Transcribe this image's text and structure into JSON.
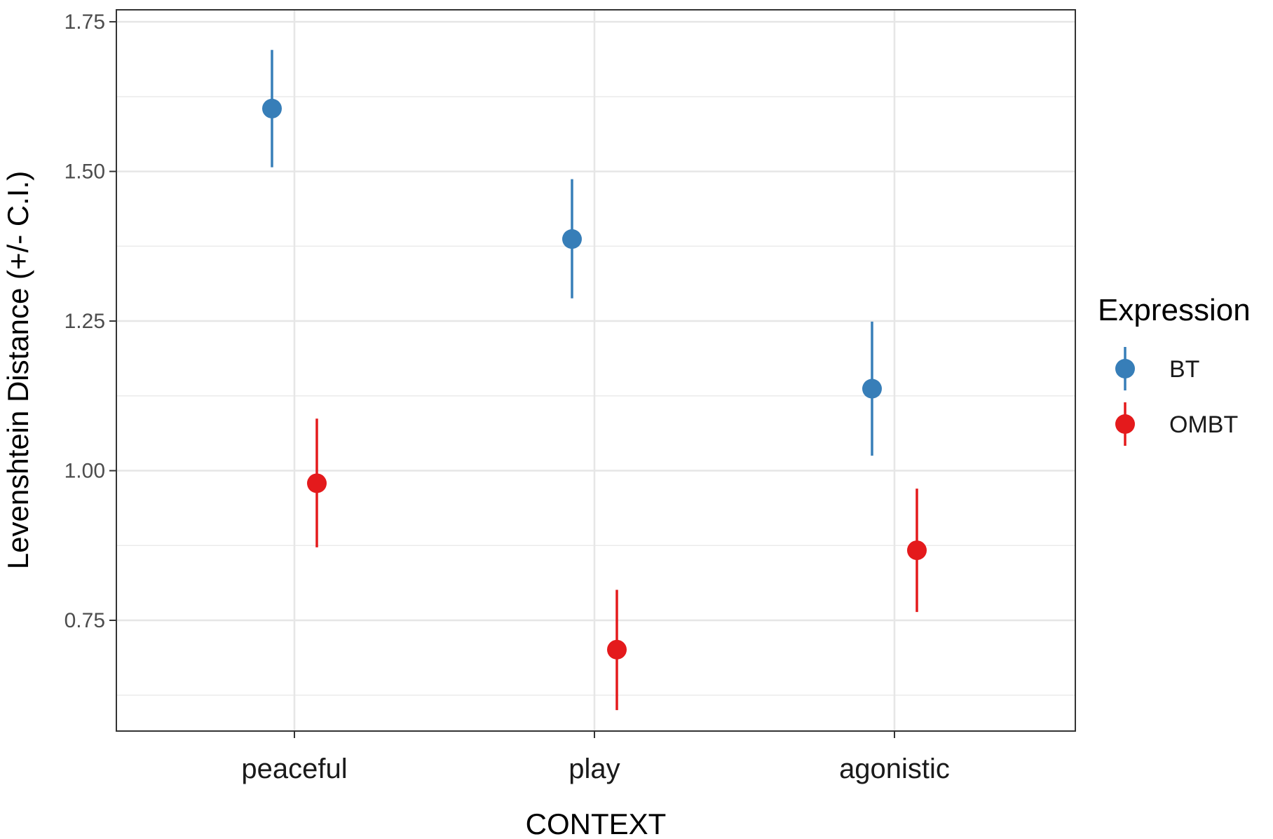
{
  "chart_data": {
    "type": "scatter",
    "title": "",
    "xlabel": "CONTEXT",
    "ylabel": "Levenshtein Distance (+/- C.I.)",
    "categories": [
      "peaceful",
      "play",
      "agonistic"
    ],
    "ylim": [
      0.565,
      1.77
    ],
    "y_ticks": [
      0.75,
      1.0,
      1.25,
      1.5,
      1.75
    ],
    "y_tick_labels": [
      "0.75",
      "1.00",
      "1.25",
      "1.50",
      "1.75"
    ],
    "grid": true,
    "legend": {
      "title": "Expression",
      "position": "right"
    },
    "series": [
      {
        "name": "BT",
        "color": "#377eb8",
        "values": [
          1.605,
          1.387,
          1.137
        ],
        "ci_low": [
          1.507,
          1.288,
          1.025
        ],
        "ci_high": [
          1.703,
          1.487,
          1.249
        ]
      },
      {
        "name": "OMBT",
        "color": "#e41a1c",
        "values": [
          0.979,
          0.701,
          0.867
        ],
        "ci_low": [
          0.872,
          0.6,
          0.764
        ],
        "ci_high": [
          1.087,
          0.801,
          0.97
        ]
      }
    ]
  }
}
